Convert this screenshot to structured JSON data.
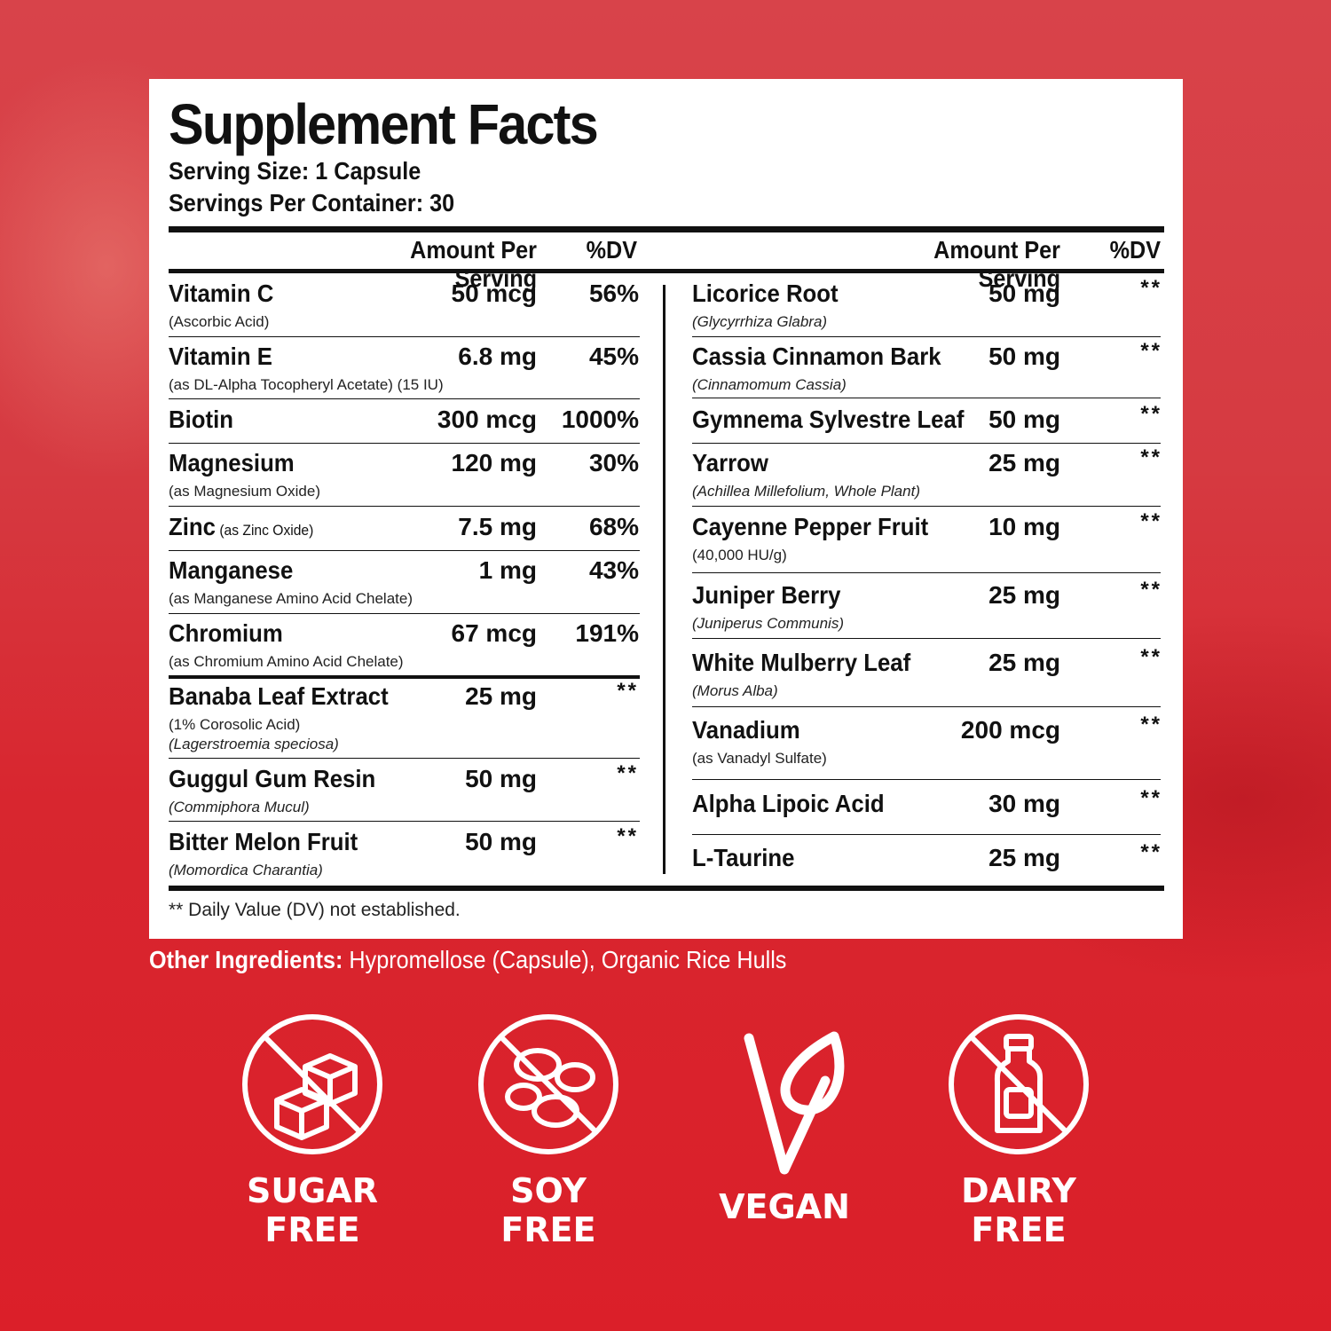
{
  "panel": {
    "title": "Supplement Facts",
    "serving_size": "Serving Size: 1 Capsule",
    "servings_per_container": "Servings Per Container: 30",
    "header": {
      "amount": "Amount Per Serving",
      "dv": "%DV"
    },
    "left_rows": [
      {
        "name": "Vitamin C",
        "sub": [
          "(Ascorbic Acid)"
        ],
        "italic": false,
        "amount": "50 mcg",
        "dv": "56%"
      },
      {
        "name": "Vitamin E",
        "sub": [
          "(as DL-Alpha Tocopheryl Acetate) (15 IU)"
        ],
        "italic": false,
        "amount": "6.8 mg",
        "dv": "45%"
      },
      {
        "name": "Biotin",
        "sub": [],
        "italic": false,
        "amount": "300 mcg",
        "dv": "1000%"
      },
      {
        "name": "Magnesium",
        "sub": [
          "(as Magnesium Oxide)"
        ],
        "italic": false,
        "amount": "120 mg",
        "dv": "30%"
      },
      {
        "name": "Zinc",
        "inline_sub": "(as Zinc Oxide)",
        "sub": [],
        "italic": false,
        "amount": "7.5 mg",
        "dv": "68%"
      },
      {
        "name": "Manganese",
        "sub": [
          "(as Manganese Amino Acid Chelate)"
        ],
        "italic": false,
        "amount": "1 mg",
        "dv": "43%"
      },
      {
        "name": "Chromium",
        "sub": [
          "(as Chromium Amino Acid Chelate)"
        ],
        "italic": false,
        "amount": "67 mcg",
        "dv": "191%"
      },
      {
        "name": "Banaba Leaf Extract",
        "sub": [
          "(1% Corosolic Acid)",
          "(Lagerstroemia speciosa)"
        ],
        "italic": false,
        "italic_second": true,
        "amount": "25 mg",
        "dv": "**"
      },
      {
        "name": "Guggul Gum Resin",
        "sub": [
          "(Commiphora Mucul)"
        ],
        "italic": true,
        "amount": "50 mg",
        "dv": "**"
      },
      {
        "name": "Bitter Melon Fruit",
        "sub": [
          "(Momordica Charantia)"
        ],
        "italic": true,
        "amount": "50 mg",
        "dv": "**"
      }
    ],
    "right_rows": [
      {
        "name": "Licorice Root",
        "sub": [
          "(Glycyrrhiza Glabra)"
        ],
        "italic": true,
        "amount": "50 mg",
        "dv": "**"
      },
      {
        "name": "Cassia Cinnamon Bark",
        "sub": [
          "(Cinnamomum Cassia)"
        ],
        "italic": true,
        "amount": "50 mg",
        "dv": "**"
      },
      {
        "name": "Gymnema Sylvestre Leaf",
        "sub": [],
        "italic": false,
        "amount": "50 mg",
        "dv": "**"
      },
      {
        "name": "Yarrow",
        "sub": [
          "(Achillea Millefolium, Whole Plant)"
        ],
        "italic": true,
        "amount": "25 mg",
        "dv": "**"
      },
      {
        "name": "Cayenne Pepper Fruit",
        "sub": [
          "(40,000 HU/g)"
        ],
        "italic": false,
        "amount": "10 mg",
        "dv": "**"
      },
      {
        "name": "Juniper Berry",
        "sub": [
          "(Juniperus Communis)"
        ],
        "italic": true,
        "amount": "25 mg",
        "dv": "**"
      },
      {
        "name": "White Mulberry Leaf",
        "sub": [
          "(Morus Alba)"
        ],
        "italic": true,
        "amount": "25 mg",
        "dv": "**"
      },
      {
        "name": "Vanadium",
        "sub": [
          "(as Vanadyl Sulfate)"
        ],
        "italic": false,
        "amount": "200 mcg",
        "dv": "**"
      },
      {
        "name": "Alpha Lipoic Acid",
        "sub": [],
        "italic": false,
        "amount": "30 mg",
        "dv": "**"
      },
      {
        "name": "L-Taurine",
        "sub": [],
        "italic": false,
        "amount": "25 mg",
        "dv": "**"
      }
    ],
    "footnote": "** Daily Value (DV) not established."
  },
  "other_ingredients": {
    "label": "Other Ingredients:",
    "value": " Hypromellose (Capsule), Organic Rice Hulls"
  },
  "badges": [
    {
      "icon": "sugar-cube-icon",
      "lines": [
        "SUGAR",
        "FREE"
      ]
    },
    {
      "icon": "soybean-icon",
      "lines": [
        "SOY",
        "FREE"
      ]
    },
    {
      "icon": "vegan-leaf-icon",
      "lines": [
        "VEGAN"
      ]
    },
    {
      "icon": "milk-bottle-icon",
      "lines": [
        "DAIRY",
        "FREE"
      ]
    }
  ],
  "colors": {
    "background": "#d8262f",
    "panel": "#ffffff",
    "ink": "#111111",
    "badge": "#ffffff"
  }
}
